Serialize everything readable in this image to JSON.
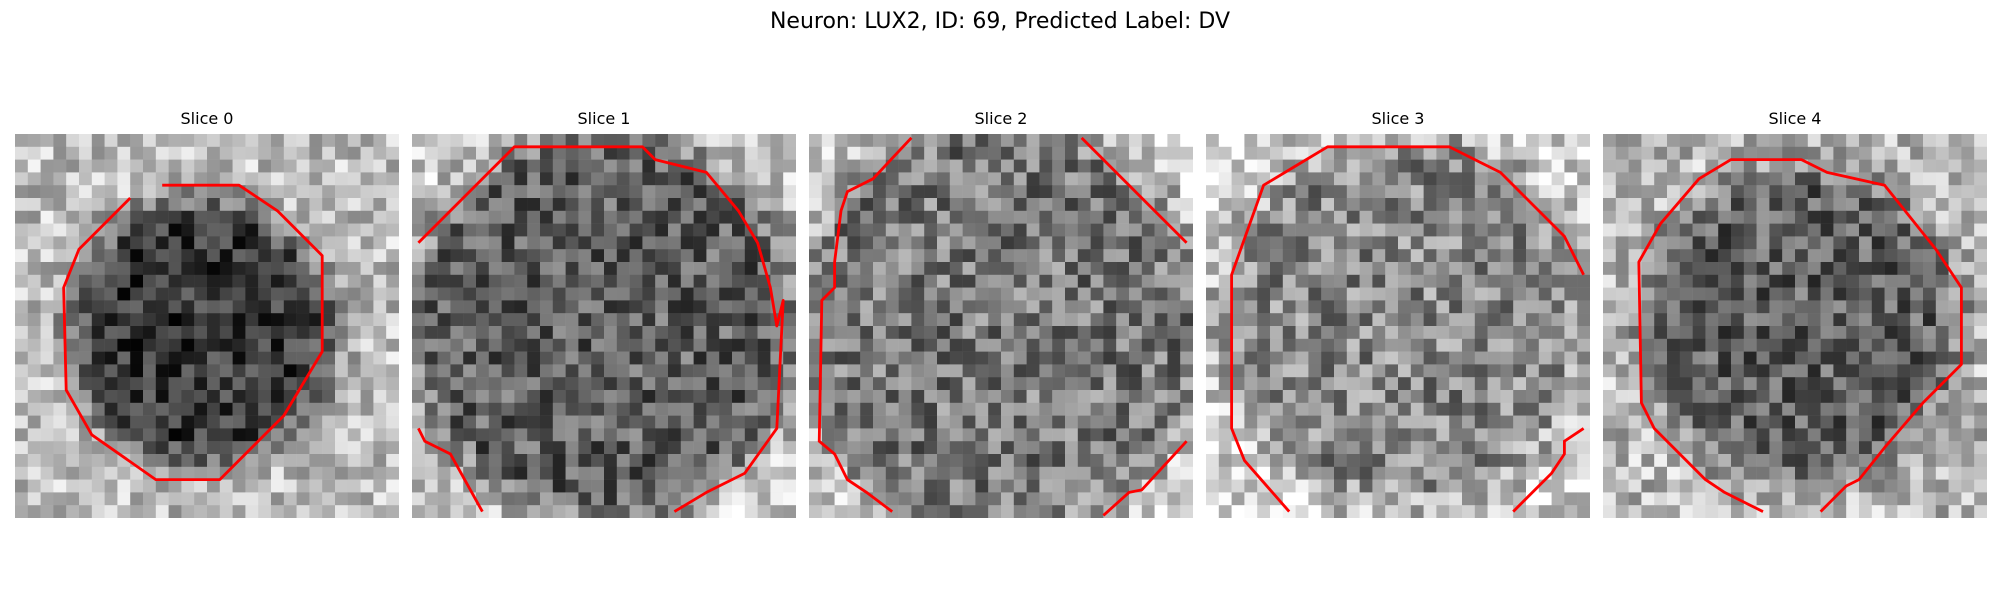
{
  "figure": {
    "title": "Neuron: LUX2, ID: 69, Predicted Label: DV"
  },
  "slices": [
    {
      "title": "Slice 0"
    },
    {
      "title": "Slice 1"
    },
    {
      "title": "Slice 2"
    },
    {
      "title": "Slice 3"
    },
    {
      "title": "Slice 4"
    }
  ],
  "colors": {
    "contour": "#ff0000"
  }
}
